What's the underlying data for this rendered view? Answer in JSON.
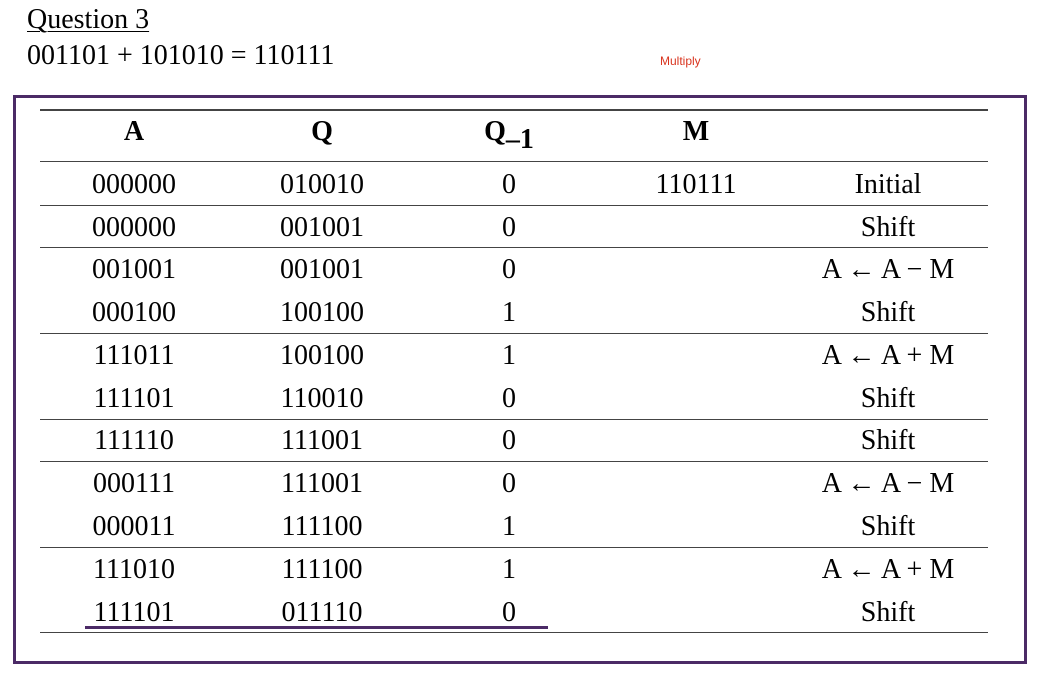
{
  "heading": {
    "title": "Question 3",
    "equation": "001101 + 101010 = 110111",
    "note": "Multiply"
  },
  "table": {
    "columns": {
      "a": "A",
      "q": "Q",
      "q1_main": "Q",
      "q1_sub": "–1",
      "m": "M"
    },
    "rows": [
      {
        "a": "000000",
        "q": "010010",
        "q1": "0",
        "m": "110111",
        "op": "Initial"
      },
      {
        "a": "000000",
        "q": "001001",
        "q1": "0",
        "m": "",
        "op": "Shift"
      },
      {
        "a": "001001",
        "q": "001001",
        "q1": "0",
        "m": "",
        "op": "A ← A −  M"
      },
      {
        "a": "000100",
        "q": "100100",
        "q1": "1",
        "m": "",
        "op": "Shift"
      },
      {
        "a": "111011",
        "q": "100100",
        "q1": "1",
        "m": "",
        "op": "A ← A +  M"
      },
      {
        "a": "111101",
        "q": "110010",
        "q1": "0",
        "m": "",
        "op": "Shift"
      },
      {
        "a": "111110",
        "q": "111001",
        "q1": "0",
        "m": "",
        "op": "Shift"
      },
      {
        "a": "000111",
        "q": "111001",
        "q1": "0",
        "m": "",
        "op": "A ← A −  M"
      },
      {
        "a": "000011",
        "q": "111100",
        "q1": "1",
        "m": "",
        "op": "Shift"
      },
      {
        "a": "111010",
        "q": "111100",
        "q1": "1",
        "m": "",
        "op": "A ← A +  M"
      },
      {
        "a": "111101",
        "q": "011110",
        "q1": "0",
        "m": "",
        "op": "Shift"
      }
    ]
  }
}
